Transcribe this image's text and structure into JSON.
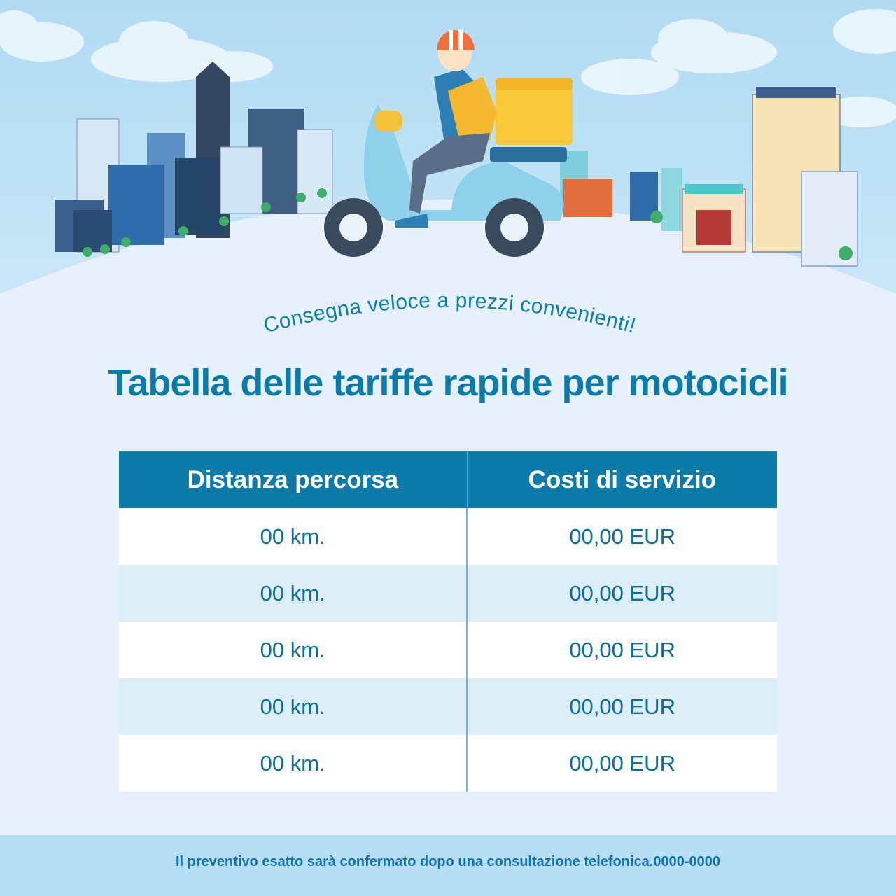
{
  "tagline": "Consegna veloce a prezzi convenienti!",
  "title": "Tabella delle tariffe rapide per motocicli",
  "table": {
    "headers": [
      "Distanza percorsa",
      "Costi di servizio"
    ],
    "rows": [
      [
        "00 km.",
        "00,00 EUR"
      ],
      [
        "00 km.",
        "00,00 EUR"
      ],
      [
        "00 km.",
        "00,00 EUR"
      ],
      [
        "00 km.",
        "00,00 EUR"
      ],
      [
        "00 km.",
        "00,00 EUR"
      ]
    ]
  },
  "footer": "Il preventivo esatto sarà confermato dopo una consultazione telefonica.0000-0000",
  "illustration": {
    "icons": [
      "cloud-icon",
      "skyscraper-icon",
      "delivery-scooter-icon",
      "courier-icon",
      "delivery-box-icon",
      "tree-icon",
      "shop-icon"
    ],
    "colors": {
      "sky": "#b5ddf3",
      "hill": "#e6f1fb",
      "accent": "#0d7ba8",
      "scooter": "#8fd0ea",
      "box": "#f9c93b",
      "helmet": "#f26f3c"
    }
  }
}
